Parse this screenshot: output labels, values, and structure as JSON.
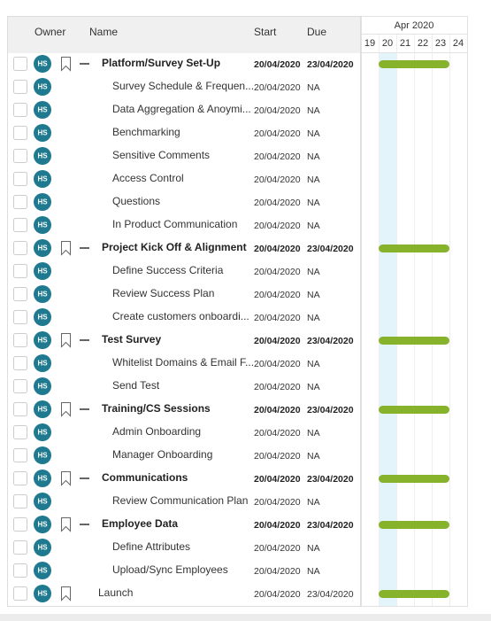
{
  "header": {
    "owner": "Owner",
    "name": "Name",
    "start": "Start",
    "due": "Due",
    "month": "Apr 2020",
    "days": [
      "19",
      "20",
      "21",
      "22",
      "23",
      "24"
    ]
  },
  "groups": [
    {
      "owner": "HS",
      "name": "Platform/Survey Set-Up",
      "start": "20/04/2020",
      "due": "23/04/2020",
      "tasks": [
        {
          "owner": "HS",
          "name": "Survey Schedule & Frequen...",
          "start": "20/04/2020",
          "due": "NA"
        },
        {
          "owner": "HS",
          "name": "Data Aggregation & Anoymi...",
          "start": "20/04/2020",
          "due": "NA"
        },
        {
          "owner": "HS",
          "name": "Benchmarking",
          "start": "20/04/2020",
          "due": "NA"
        },
        {
          "owner": "HS",
          "name": "Sensitive Comments",
          "start": "20/04/2020",
          "due": "NA"
        },
        {
          "owner": "HS",
          "name": "Access Control",
          "start": "20/04/2020",
          "due": "NA"
        },
        {
          "owner": "HS",
          "name": "Questions",
          "start": "20/04/2020",
          "due": "NA"
        },
        {
          "owner": "HS",
          "name": "In Product Communication",
          "start": "20/04/2020",
          "due": "NA"
        }
      ]
    },
    {
      "owner": "HS",
      "name": "Project Kick Off & Alignment",
      "start": "20/04/2020",
      "due": "23/04/2020",
      "tasks": [
        {
          "owner": "HS",
          "name": "Define Success Criteria",
          "start": "20/04/2020",
          "due": "NA"
        },
        {
          "owner": "HS",
          "name": "Review Success Plan",
          "start": "20/04/2020",
          "due": "NA"
        },
        {
          "owner": "HS",
          "name": "Create customers onboardi...",
          "start": "20/04/2020",
          "due": "NA"
        }
      ]
    },
    {
      "owner": "HS",
      "name": "Test Survey",
      "start": "20/04/2020",
      "due": "23/04/2020",
      "tasks": [
        {
          "owner": "HS",
          "name": "Whitelist Domains & Email F...",
          "start": "20/04/2020",
          "due": "NA"
        },
        {
          "owner": "HS",
          "name": "Send Test",
          "start": "20/04/2020",
          "due": "NA"
        }
      ]
    },
    {
      "owner": "HS",
      "name": "Training/CS Sessions",
      "start": "20/04/2020",
      "due": "23/04/2020",
      "tasks": [
        {
          "owner": "HS",
          "name": "Admin Onboarding",
          "start": "20/04/2020",
          "due": "NA"
        },
        {
          "owner": "HS",
          "name": "Manager Onboarding",
          "start": "20/04/2020",
          "due": "NA"
        }
      ]
    },
    {
      "owner": "HS",
      "name": "Communications",
      "start": "20/04/2020",
      "due": "23/04/2020",
      "tasks": [
        {
          "owner": "HS",
          "name": "Review Communication Plan",
          "start": "20/04/2020",
          "due": "NA"
        }
      ]
    },
    {
      "owner": "HS",
      "name": "Employee Data",
      "start": "20/04/2020",
      "due": "23/04/2020",
      "tasks": [
        {
          "owner": "HS",
          "name": "Define Attributes",
          "start": "20/04/2020",
          "due": "NA"
        },
        {
          "owner": "HS",
          "name": "Upload/Sync Employees",
          "start": "20/04/2020",
          "due": "NA"
        }
      ]
    }
  ],
  "milestone": {
    "owner": "HS",
    "name": "Launch",
    "start": "20/04/2020",
    "due": "23/04/2020"
  }
}
